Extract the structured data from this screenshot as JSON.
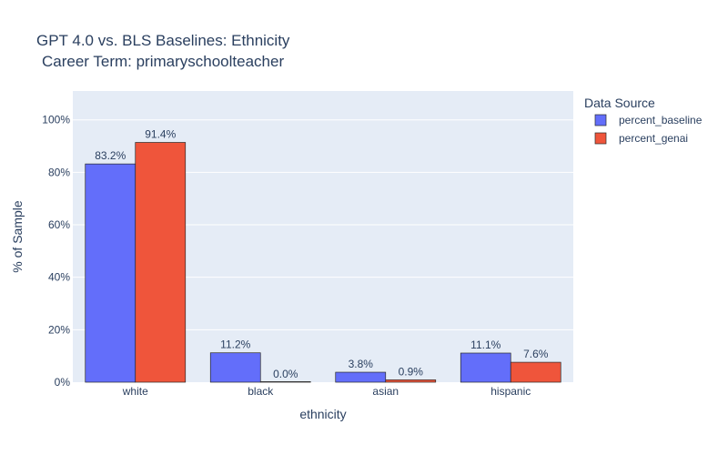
{
  "chart_data": {
    "type": "bar",
    "title": "GPT 4.0 vs. BLS Baselines: Ethnicity",
    "subtitle": "Career Term: primaryschoolteacher",
    "xlabel": "ethnicity",
    "ylabel": "% of Sample",
    "categories": [
      "white",
      "black",
      "asian",
      "hispanic"
    ],
    "series": [
      {
        "name": "percent_baseline",
        "color": "#636efa",
        "values": [
          83.2,
          11.2,
          3.8,
          11.1
        ],
        "labels": [
          "83.2%",
          "11.2%",
          "3.8%",
          "11.1%"
        ]
      },
      {
        "name": "percent_genai",
        "color": "#ef553b",
        "values": [
          91.4,
          0.0,
          0.9,
          7.6
        ],
        "labels": [
          "91.4%",
          "0.0%",
          "0.9%",
          "7.6%"
        ]
      }
    ],
    "ylim": [
      0,
      111
    ],
    "yticks": [
      0,
      20,
      40,
      60,
      80,
      100
    ],
    "ytick_labels": [
      "0%",
      "20%",
      "40%",
      "60%",
      "80%",
      "100%"
    ],
    "grid": true,
    "plot_background": "#e5ecf6",
    "legend": {
      "title": "Data Source",
      "placement": "right"
    }
  }
}
